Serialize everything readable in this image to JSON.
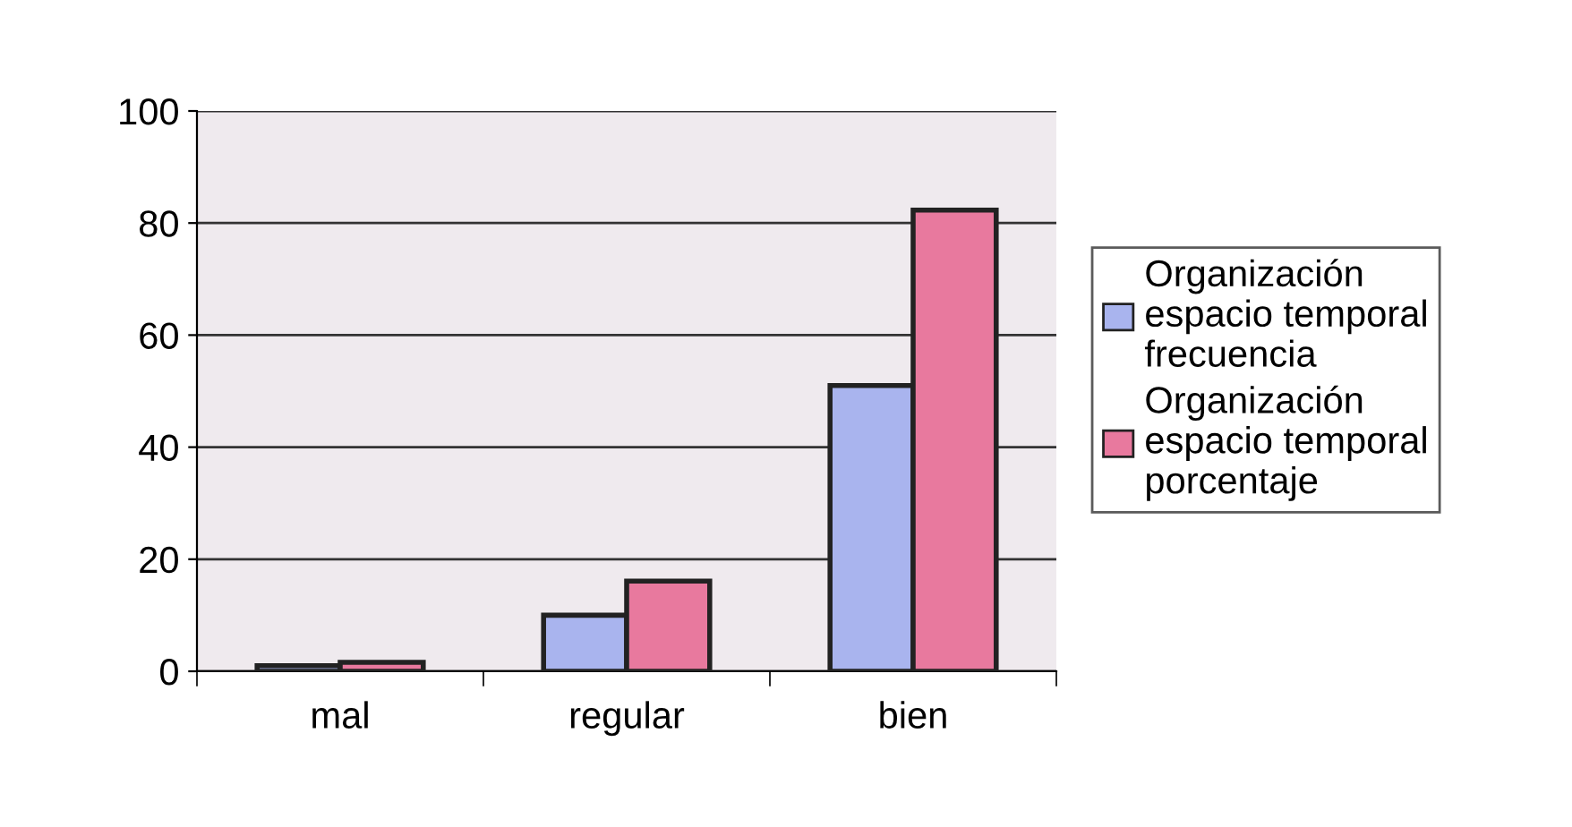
{
  "chart_data": {
    "type": "bar",
    "categories": [
      "mal",
      "regular",
      "bien"
    ],
    "series": [
      {
        "name": "Organización\nespacio temporal\nfrecuencia",
        "color": "#a9b4ee",
        "values": [
          1,
          10,
          51
        ]
      },
      {
        "name": "Organización\nespacio temporal\nporcentaje",
        "color": "#e8799e",
        "values": [
          1.6,
          16.1,
          82.3
        ]
      }
    ],
    "ylim": [
      0,
      100
    ],
    "yticks": [
      0,
      20,
      40,
      60,
      80,
      100
    ],
    "grid": "y",
    "legend": "right"
  }
}
